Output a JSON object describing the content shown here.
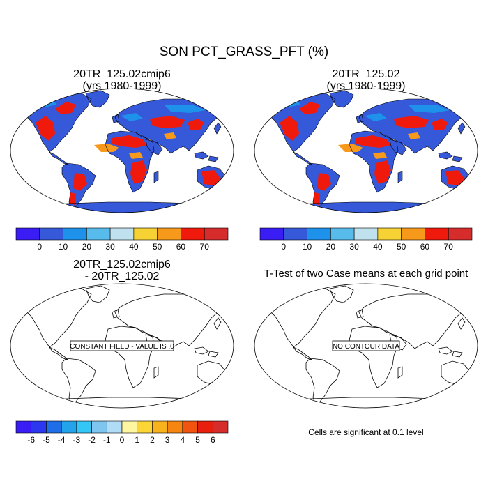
{
  "main_title": "SON PCT_GRASS_PFT (%)",
  "panels": [
    {
      "title_line1": "20TR_125.02cmip6",
      "title_line2": "(yrs 1980-1999)",
      "kind": "field"
    },
    {
      "title_line1": "20TR_125.02",
      "title_line2": "(yrs 1980-1999)",
      "kind": "field"
    },
    {
      "title_line1": "20TR_125.02cmip6",
      "title_line2": "- 20TR_125.02",
      "kind": "difference",
      "note": "CONSTANT FIELD - VALUE IS .0"
    },
    {
      "title_line1": "T-Test of two Case means at each grid point",
      "title_line2": "",
      "kind": "ttest",
      "note": "NO CONTOUR DATA"
    }
  ],
  "colorbars": {
    "field": {
      "labels": [
        "0",
        "10",
        "20",
        "30",
        "40",
        "50",
        "60",
        "70"
      ],
      "colors": [
        "#3a1cf4",
        "#3559d9",
        "#1e92eb",
        "#57bbec",
        "#c0e2ef",
        "#f6d234",
        "#f79a1b",
        "#f01a0c",
        "#d62c2c"
      ]
    },
    "difference": {
      "labels": [
        "-6",
        "-5",
        "-4",
        "-3",
        "-2",
        "-1",
        "0",
        "1",
        "2",
        "3",
        "4",
        "5",
        "6"
      ],
      "colors": [
        "#3a1cf4",
        "#2c37f0",
        "#1f6ee8",
        "#23a4ea",
        "#34c6f4",
        "#7ec5ef",
        "#b0dcf5",
        "#fef6a1",
        "#fbd636",
        "#f8b21b",
        "#f68512",
        "#f1540f",
        "#e81f0e",
        "#d62c2c"
      ]
    }
  },
  "significance_note": "Cells are significant at 0.1 level",
  "map_colors": {
    "ocean": "#ffffff",
    "low_grass": "#3559d9",
    "medium_grass": "#1e92eb",
    "high_grass": "#f01a0c",
    "antarctica": "#3559d9"
  }
}
